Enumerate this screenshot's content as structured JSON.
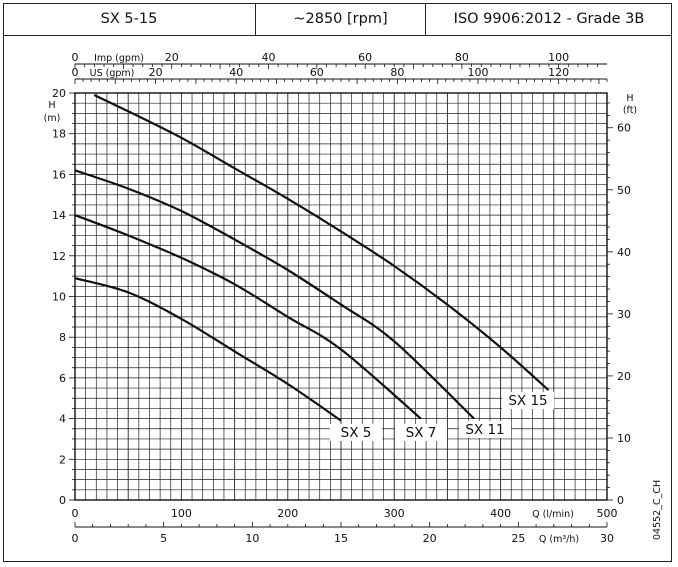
{
  "header": {
    "model": "SX 5-15",
    "speed": "~2850 [rpm]",
    "standard": "ISO 9906:2012 - Grade 3B"
  },
  "code": "04552_C_CH",
  "chart_data": {
    "type": "line",
    "title": "",
    "axes": {
      "q_lmin": {
        "label": "Q (l/min)",
        "range": [
          0,
          500
        ],
        "ticks": [
          "0",
          "100",
          "200",
          "300",
          "400",
          "500"
        ]
      },
      "q_m3h": {
        "label": "Q (m³/h)",
        "range": [
          0,
          30
        ],
        "ticks": [
          "0",
          "5",
          "10",
          "15",
          "20",
          "25",
          "30"
        ]
      },
      "imp_gpm": {
        "label": "Imp (gpm)",
        "range": [
          0,
          110
        ],
        "ticks": [
          "0",
          "20",
          "40",
          "60",
          "80",
          "100"
        ]
      },
      "us_gpm": {
        "label": "US (gpm)",
        "range": [
          0,
          132
        ],
        "ticks": [
          "0",
          "20",
          "40",
          "60",
          "80",
          "100",
          "120"
        ]
      },
      "h_m": {
        "label": "H\n(m)",
        "range": [
          0,
          20
        ],
        "ticks": [
          "0",
          "2",
          "4",
          "6",
          "8",
          "10",
          "12",
          "14",
          "16",
          "18",
          "20"
        ]
      },
      "h_ft": {
        "label": "H\n(ft)",
        "range": [
          0,
          65.6
        ],
        "ticks": [
          "0",
          "10",
          "20",
          "30",
          "40",
          "50",
          "60"
        ]
      }
    },
    "grid": true,
    "series": [
      {
        "name": "SX 5",
        "x": [
          0,
          50,
          100,
          150,
          200,
          250
        ],
        "y": [
          10.9,
          10.2,
          8.9,
          7.3,
          5.7,
          3.9
        ]
      },
      {
        "name": "SX 7",
        "x": [
          0,
          50,
          100,
          150,
          200,
          250,
          325
        ],
        "y": [
          14.0,
          13.0,
          11.9,
          10.6,
          9.0,
          7.4,
          4.0
        ]
      },
      {
        "name": "SX 11",
        "x": [
          0,
          50,
          100,
          150,
          200,
          250,
          300,
          375
        ],
        "y": [
          16.2,
          15.3,
          14.2,
          12.8,
          11.3,
          9.6,
          7.8,
          4.0
        ]
      },
      {
        "name": "SX 15",
        "x": [
          18,
          50,
          100,
          150,
          200,
          250,
          300,
          350,
          400,
          445
        ],
        "y": [
          19.9,
          19.1,
          17.8,
          16.3,
          14.8,
          13.2,
          11.5,
          9.6,
          7.5,
          5.4
        ]
      }
    ]
  }
}
